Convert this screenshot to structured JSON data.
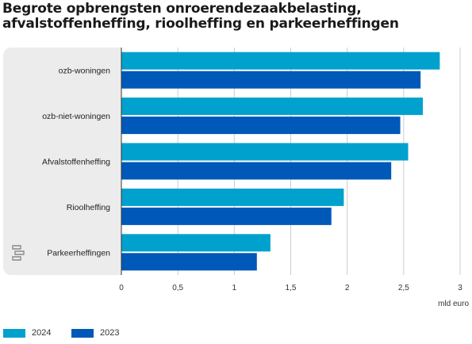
{
  "title_lines": [
    "Begrote opbrengsten onroerendezaakbelasting,",
    "afvalstoffenheffing, rioolheffing en parkeerheffingen"
  ],
  "colors": {
    "2024": "#00a1cd",
    "2023": "#0058b8",
    "panel": "#ececec",
    "axis": "#333333",
    "grid": "#cccccc"
  },
  "icons": {
    "logo": "cbs-logo-icon"
  },
  "chart_data": {
    "type": "bar",
    "orientation": "horizontal",
    "categories": [
      "ozb-woningen",
      "ozb-niet-woningen",
      "Afvalstoffenheffing",
      "Rioolheffing",
      "Parkeerheffingen"
    ],
    "series": [
      {
        "name": "2024",
        "values": [
          2.82,
          2.67,
          2.54,
          1.97,
          1.32
        ]
      },
      {
        "name": "2023",
        "values": [
          2.65,
          2.47,
          2.39,
          1.86,
          1.2
        ]
      }
    ],
    "xticks": [
      "0",
      "0,5",
      "1",
      "1,5",
      "2",
      "2,5",
      "3"
    ],
    "xtick_values": [
      0,
      0.5,
      1,
      1.5,
      2,
      2.5,
      3
    ],
    "xlabel": "mld euro",
    "xlim": [
      0,
      3
    ],
    "grid": true,
    "legend": "bottom-left"
  }
}
